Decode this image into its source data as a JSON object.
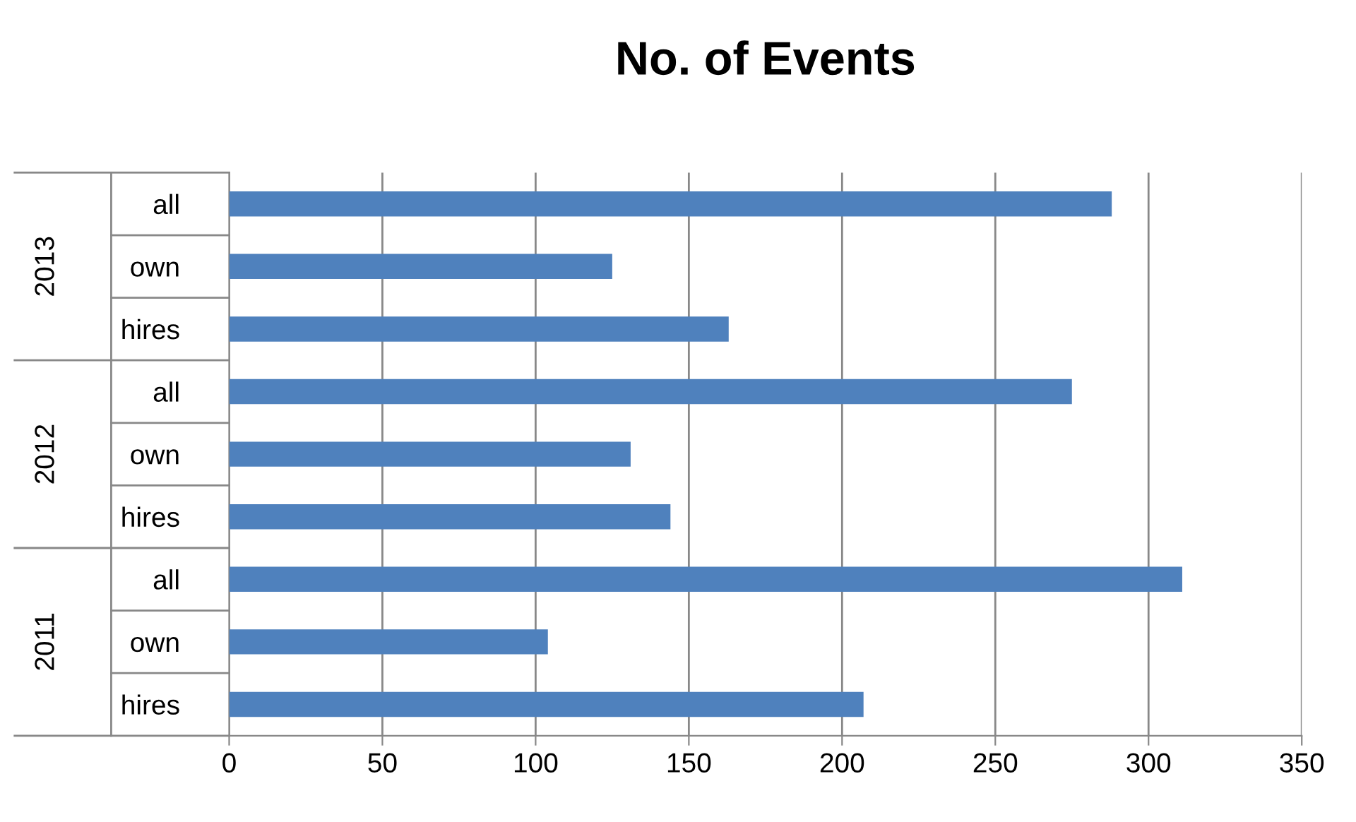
{
  "chart_data": {
    "type": "bar",
    "orientation": "horizontal",
    "title": "No. of Events",
    "categories": [
      "all",
      "own",
      "hires",
      "all",
      "own",
      "hires",
      "all",
      "own",
      "hires"
    ],
    "annotations": [
      "2013",
      "2012",
      "2011"
    ],
    "values": [
      288,
      125,
      163,
      275,
      131,
      144,
      311,
      104,
      207
    ],
    "color": "#4f81bd",
    "xlim": [
      0,
      350
    ],
    "xticks": [
      0,
      50,
      100,
      150,
      200,
      250,
      300,
      350
    ],
    "grid": "x",
    "legend": false
  }
}
